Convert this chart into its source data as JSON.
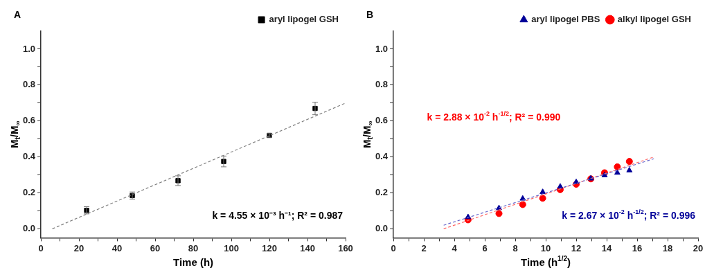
{
  "chart_data": [
    {
      "type": "scatter",
      "title": "A",
      "xlabel": "Time (h)",
      "ylabel": "M$_{t}$/M$_{∞}$",
      "xlim": [
        0,
        160
      ],
      "ylim": [
        -0.05,
        1.1
      ],
      "xticks": [
        0,
        {
          "value": 10,
          "label": null
        },
        20,
        {
          "value": 30,
          "label": null
        },
        40,
        {
          "value": 50,
          "label": null
        },
        60,
        {
          "value": 70,
          "label": null
        },
        80,
        {
          "value": 90,
          "label": null
        },
        100,
        {
          "value": 110,
          "label": null
        },
        120,
        {
          "value": 130,
          "label": null
        },
        140,
        {
          "value": 150,
          "label": null
        },
        160
      ],
      "yticks": [
        {
          "value": 0,
          "label": "0.0"
        },
        {
          "value": 0.1,
          "label": null
        },
        0.2,
        {
          "value": 0.3,
          "label": null
        },
        0.4,
        {
          "value": 0.5,
          "label": null
        },
        0.6,
        {
          "value": 0.7,
          "label": null
        },
        0.8,
        {
          "value": 0.9,
          "label": null
        },
        {
          "value": 1,
          "label": "1.0"
        }
      ],
      "grid": false,
      "legend": "top right",
      "series": [
        {
          "name": "aryl lipogel GSH",
          "type": "scatter",
          "marker": "square",
          "color": "#000000",
          "x": [
            24,
            48,
            72,
            96,
            120,
            144
          ],
          "values": [
            0.103,
            0.185,
            0.268,
            0.375,
            0.52,
            0.67
          ],
          "errors": [
            0.02,
            0.02,
            0.027,
            0.03,
            0.01,
            0.035
          ]
        },
        {
          "type": "line",
          "marker": "none",
          "line_style": "dashed",
          "color": "#808080",
          "x": [
            6,
            160
          ],
          "values": [
            0,
            0.7
          ]
        }
      ],
      "annotations": [
        "k = 4.55 × 10⁻³ h⁻¹; R² = 0.987"
      ]
    },
    {
      "type": "scatter",
      "title": "B",
      "xlabel": "Time (h$^{1/2}$)",
      "ylabel": "M$_{t}$/M$_{∞}$",
      "xlim": [
        0,
        20
      ],
      "ylim": [
        -0.05,
        1.1
      ],
      "xticks": [
        0,
        {
          "value": 1,
          "label": null
        },
        2,
        {
          "value": 3,
          "label": null
        },
        4,
        {
          "value": 5,
          "label": null
        },
        6,
        {
          "value": 7,
          "label": null
        },
        8,
        {
          "value": 9,
          "label": null
        },
        10,
        {
          "value": 11,
          "label": null
        },
        12,
        {
          "value": 13,
          "label": null
        },
        14,
        {
          "value": 15,
          "label": null
        },
        16,
        {
          "value": 17,
          "label": null
        },
        18,
        {
          "value": 19,
          "label": null
        },
        20
      ],
      "yticks": [
        {
          "value": 0,
          "label": "0.0"
        },
        {
          "value": 0.1,
          "label": null
        },
        0.2,
        {
          "value": 0.3,
          "label": null
        },
        0.4,
        {
          "value": 0.5,
          "label": null
        },
        0.6,
        {
          "value": 0.7,
          "label": null
        },
        0.8,
        {
          "value": 0.9,
          "label": null
        },
        {
          "value": 1,
          "label": "1.0"
        }
      ],
      "grid": false,
      "legend": "top right",
      "series": [
        {
          "name": "alkyl lipogel GSH",
          "type": "scatter",
          "marker": "circle",
          "color": "#ff0000",
          "x": [
            4.9,
            6.93,
            8.49,
            9.8,
            10.95,
            12,
            12.96,
            13.86,
            14.7,
            15.49
          ],
          "values": [
            0.05,
            0.085,
            0.135,
            0.17,
            0.218,
            0.248,
            0.278,
            0.312,
            0.345,
            0.375
          ]
        },
        {
          "name": "aryl lipogel PBS",
          "type": "scatter",
          "marker": "triangle",
          "color": "#000099",
          "x": [
            4.9,
            6.93,
            8.49,
            9.8,
            10.95,
            12,
            12.96,
            13.86,
            14.7,
            15.49
          ],
          "values": [
            0.065,
            0.115,
            0.168,
            0.205,
            0.235,
            0.26,
            0.28,
            0.298,
            0.312,
            0.325
          ]
        },
        {
          "type": "line",
          "marker": "none",
          "line_style": "dashed",
          "color": "#ff6666",
          "x": [
            3.3,
            17.1
          ],
          "values": [
            0,
            0.4
          ]
        },
        {
          "type": "line",
          "marker": "none",
          "line_style": "dashed",
          "color": "#6666cc",
          "x": [
            3.3,
            17.1
          ],
          "values": [
            0.02,
            0.39
          ]
        }
      ],
      "annotations": [
        "k = 2.88 × 10$^{-2}$ h$^{-1/2}$; R² = 0.990",
        "k = 2.67 × 10$^{-2}$ h$^{-1/2}$; R² = 0.996"
      ]
    }
  ]
}
